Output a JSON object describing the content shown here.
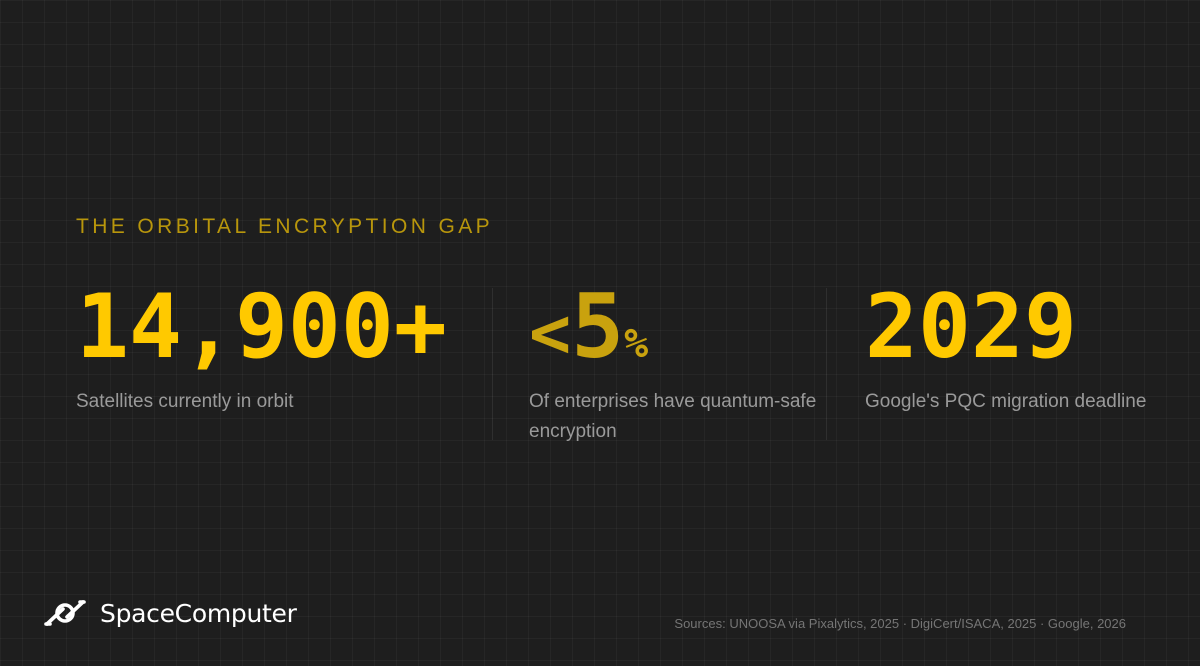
{
  "slide": {
    "kicker": "THE ORBITAL ENCRYPTION GAP",
    "stats": [
      {
        "value": "14,900+",
        "caption": "Satellites currently in orbit"
      },
      {
        "prefix": "<",
        "number": "5",
        "suffix": "%",
        "caption": "Of enterprises have quantum-safe encryption"
      },
      {
        "value": "2029",
        "caption": "Google's PQC migration deadline"
      }
    ]
  },
  "footer": {
    "logo_text": "SpaceComputer",
    "sources": "Sources: UNOOSA via Pixalytics, 2025 · DigiCert/ISACA, 2025 · Google, 2026"
  },
  "colors": {
    "background": "#1e1e1e",
    "accent": "#ffc900",
    "kicker": "#b8960c",
    "caption": "#9a9a9a"
  },
  "icons": {
    "logo": "spacecomputer-logo-icon"
  }
}
